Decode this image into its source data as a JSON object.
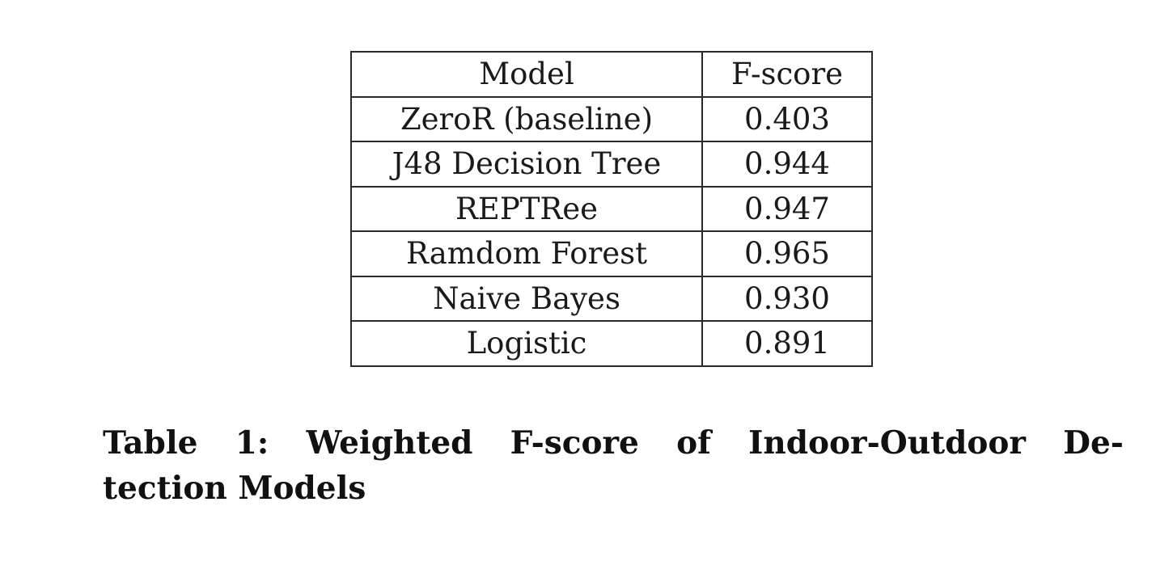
{
  "table": {
    "headers": [
      "Model",
      "F-score"
    ],
    "rows": [
      [
        "ZeroR (baseline)",
        "0.403"
      ],
      [
        "J48 Decision Tree",
        "0.944"
      ],
      [
        "REPTRee",
        "0.947"
      ],
      [
        "Ramdom Forest",
        "0.965"
      ],
      [
        "Naive Bayes",
        "0.930"
      ],
      [
        "Logistic",
        "0.891"
      ]
    ]
  },
  "caption": {
    "line1": "Table 1: Weighted F-score of Indoor-Outdoor De-",
    "line2": "tection Models"
  }
}
